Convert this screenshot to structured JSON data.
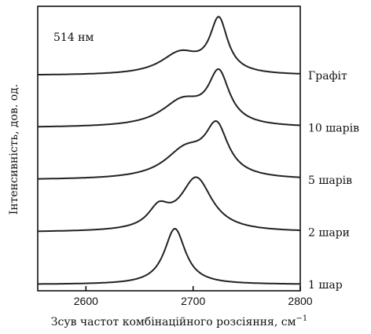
{
  "chart_data": {
    "type": "line",
    "annotation": "514 нм",
    "xlabel": "Зсув частот комбінаційного розсіяння, см",
    "xlabel_sup": "−1",
    "ylabel": "Інтенсивність, дов. од.",
    "xlim": [
      2555,
      2800
    ],
    "x_ticks": [
      2600,
      2700,
      2800
    ],
    "y_ticks_shown": false,
    "grid": false,
    "colors": {
      "line": "#222222",
      "axes": "#000000"
    },
    "series": [
      {
        "name": "Графіт",
        "baseline": 4.0,
        "peaks": [
          [
            2724,
            0.95,
            10
          ],
          [
            2688,
            0.38,
            22
          ]
        ]
      },
      {
        "name": "10 шарів",
        "baseline": 3.0,
        "peaks": [
          [
            2724,
            0.9,
            12
          ],
          [
            2690,
            0.45,
            24
          ]
        ]
      },
      {
        "name": "5 шарів",
        "baseline": 2.0,
        "peaks": [
          [
            2722,
            0.85,
            13
          ],
          [
            2693,
            0.5,
            24
          ]
        ]
      },
      {
        "name": "2 шари",
        "baseline": 1.0,
        "peaks": [
          [
            2703,
            0.95,
            18
          ],
          [
            2668,
            0.35,
            12
          ]
        ]
      },
      {
        "name": "1 шар",
        "baseline": 0.0,
        "peaks": [
          [
            2683,
            1.0,
            12
          ]
        ]
      }
    ]
  }
}
